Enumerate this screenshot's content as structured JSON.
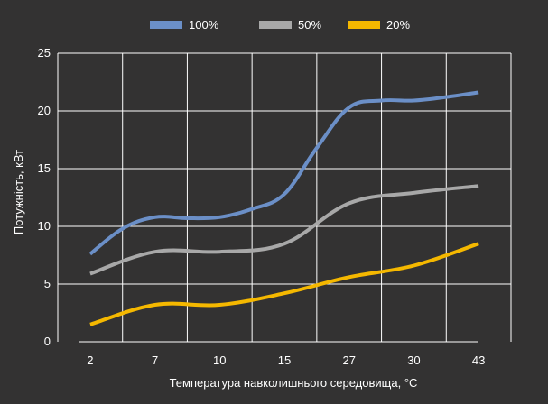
{
  "chart_data": {
    "type": "line",
    "title": "",
    "xlabel": "Температура навколишнього середовища, °C",
    "ylabel": "Потужність, кВт",
    "categories": [
      "2",
      "7",
      "10",
      "15",
      "27",
      "30",
      "43"
    ],
    "ylim": [
      0,
      25
    ],
    "yticks": [
      "0",
      "5",
      "10",
      "15",
      "20",
      "25"
    ],
    "grid": true,
    "legend_position": "top-center",
    "series": [
      {
        "name": "100%",
        "color": "#6b8fc7",
        "points": [
          [
            0,
            7.6
          ],
          [
            0.5,
            9.8
          ],
          [
            1,
            10.8
          ],
          [
            1.5,
            10.7
          ],
          [
            2,
            10.8
          ],
          [
            2.5,
            11.5
          ],
          [
            3,
            12.8
          ],
          [
            3.5,
            16.8
          ],
          [
            4,
            20.3
          ],
          [
            4.5,
            20.9
          ],
          [
            5,
            20.9
          ],
          [
            5.5,
            21.2
          ],
          [
            6,
            21.6
          ]
        ]
      },
      {
        "name": "50%",
        "color": "#a8a8a8",
        "points": [
          [
            0,
            5.9
          ],
          [
            1,
            7.8
          ],
          [
            2,
            7.8
          ],
          [
            3,
            8.5
          ],
          [
            4,
            12.0
          ],
          [
            5,
            12.9
          ],
          [
            6,
            13.5
          ]
        ]
      },
      {
        "name": "20%",
        "color": "#f5b800",
        "points": [
          [
            0,
            1.5
          ],
          [
            1,
            3.2
          ],
          [
            2,
            3.2
          ],
          [
            3,
            4.2
          ],
          [
            4,
            5.6
          ],
          [
            5,
            6.6
          ],
          [
            6,
            8.5
          ]
        ]
      }
    ]
  }
}
